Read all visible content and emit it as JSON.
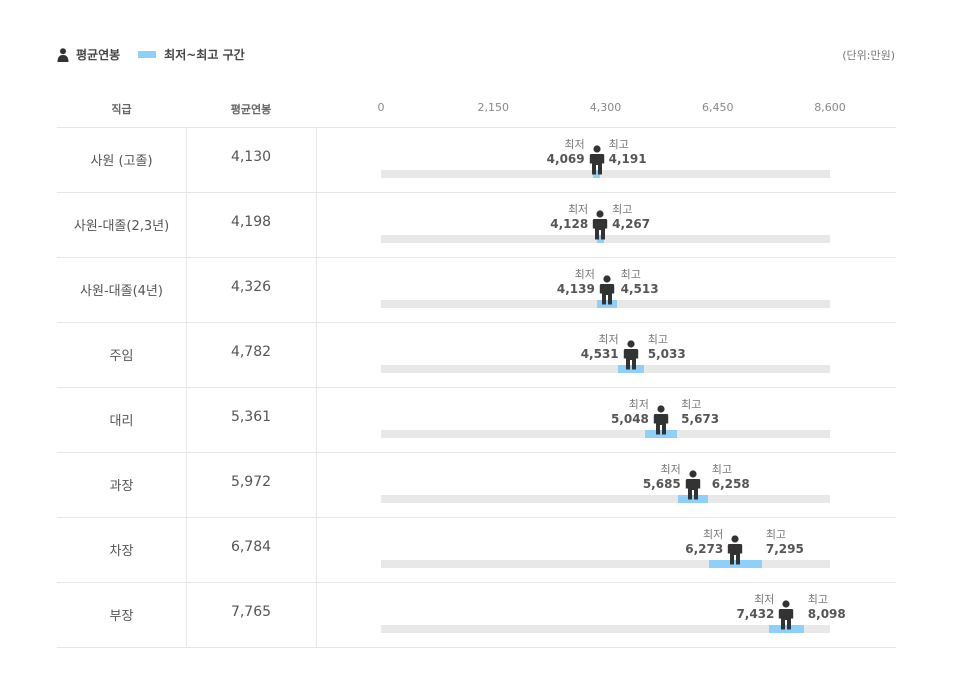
{
  "legend": {
    "avg_label": "평균연봉",
    "range_label": "최저~최고 구간",
    "person_icon": "person-icon",
    "unit": "(단위:만원)"
  },
  "colors": {
    "range": "#8fd0fb",
    "track": "#e8e8e8",
    "marker": "#333333"
  },
  "headers": {
    "grade": "직급",
    "avg": "평균연봉"
  },
  "min_caption": "최저",
  "max_caption": "최고",
  "chart_data": {
    "type": "range-bar",
    "xlim": [
      0,
      8600
    ],
    "ticks": [
      "0",
      "2,150",
      "4,300",
      "6,450",
      "8,600"
    ],
    "tick_values": [
      0,
      2150,
      4300,
      6450,
      8600
    ],
    "rows": [
      {
        "grade": "사원 (고졸)",
        "avg": 4130,
        "avg_text": "4,130",
        "min": 4069,
        "min_text": "4,069",
        "max": 4191,
        "max_text": "4,191"
      },
      {
        "grade": "사원-대졸(2,3년)",
        "avg": 4198,
        "avg_text": "4,198",
        "min": 4128,
        "min_text": "4,128",
        "max": 4267,
        "max_text": "4,267"
      },
      {
        "grade": "사원-대졸(4년)",
        "avg": 4326,
        "avg_text": "4,326",
        "min": 4139,
        "min_text": "4,139",
        "max": 4513,
        "max_text": "4,513"
      },
      {
        "grade": "주임",
        "avg": 4782,
        "avg_text": "4,782",
        "min": 4531,
        "min_text": "4,531",
        "max": 5033,
        "max_text": "5,033"
      },
      {
        "grade": "대리",
        "avg": 5361,
        "avg_text": "5,361",
        "min": 5048,
        "min_text": "5,048",
        "max": 5673,
        "max_text": "5,673"
      },
      {
        "grade": "과장",
        "avg": 5972,
        "avg_text": "5,972",
        "min": 5685,
        "min_text": "5,685",
        "max": 6258,
        "max_text": "6,258"
      },
      {
        "grade": "차장",
        "avg": 6784,
        "avg_text": "6,784",
        "min": 6273,
        "min_text": "6,273",
        "max": 7295,
        "max_text": "7,295"
      },
      {
        "grade": "부장",
        "avg": 7765,
        "avg_text": "7,765",
        "min": 7432,
        "min_text": "7,432",
        "max": 8098,
        "max_text": "8,098"
      }
    ]
  }
}
